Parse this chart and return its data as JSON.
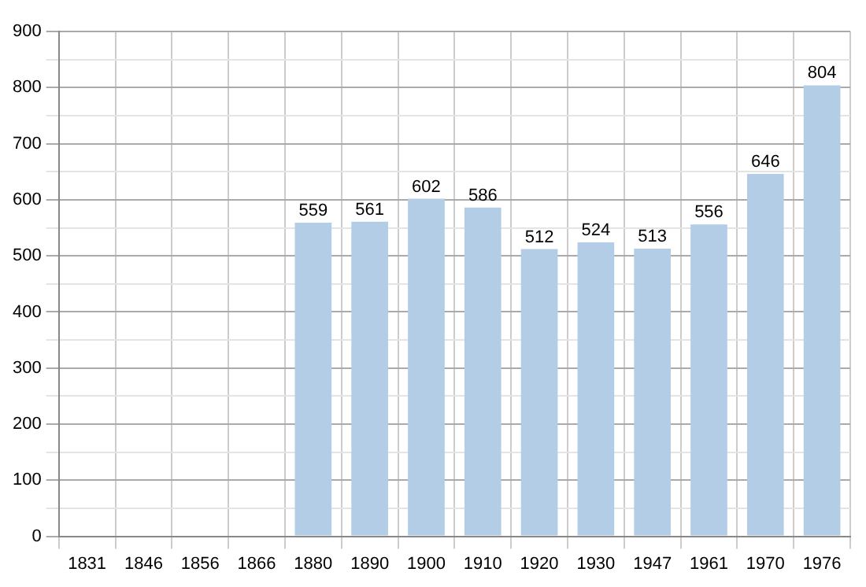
{
  "chart_data": {
    "type": "bar",
    "categories": [
      "1831",
      "1846",
      "1856",
      "1866",
      "1880",
      "1890",
      "1900",
      "1910",
      "1920",
      "1930",
      "1947",
      "1961",
      "1970",
      "1976"
    ],
    "values": [
      null,
      null,
      null,
      null,
      559,
      561,
      602,
      586,
      512,
      524,
      513,
      556,
      646,
      804
    ],
    "color": "#b3cde6",
    "ylim": [
      0,
      900
    ],
    "yticks": [
      0,
      {
        "value": 50,
        "label": null
      },
      100,
      {
        "value": 150,
        "label": null
      },
      200,
      {
        "value": 250,
        "label": null
      },
      300,
      {
        "value": 350,
        "label": null
      },
      400,
      {
        "value": 450,
        "label": null
      },
      500,
      {
        "value": 550,
        "label": null
      },
      600,
      {
        "value": 650,
        "label": null
      },
      700,
      {
        "value": 750,
        "label": null
      },
      800,
      {
        "value": 850,
        "label": null
      },
      900
    ],
    "grid": true,
    "data_labels": true
  }
}
